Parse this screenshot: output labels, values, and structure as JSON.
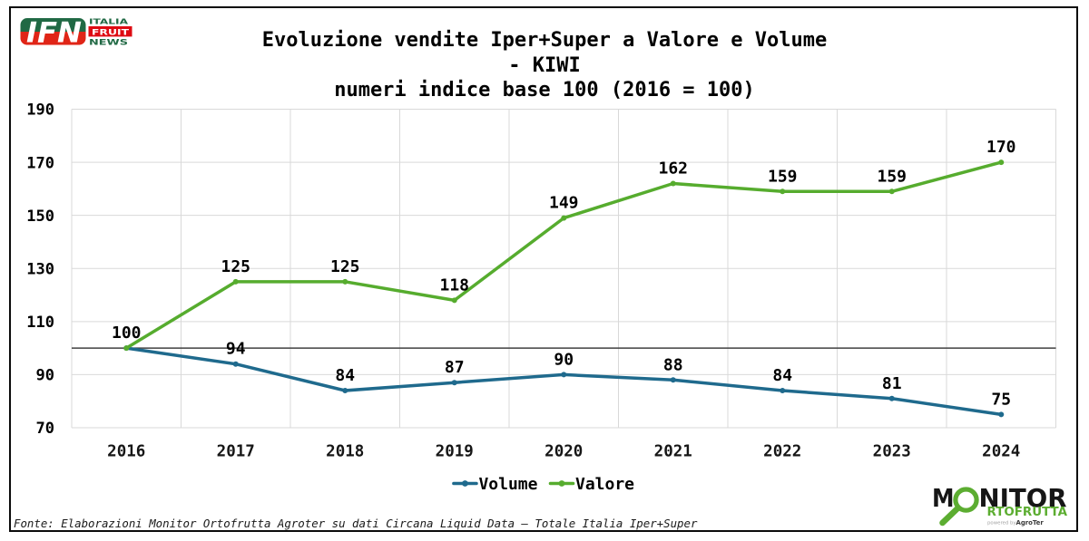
{
  "header": {
    "logo_ifn": {
      "initials": "IFN",
      "word1": "ITALIA",
      "word2": "FRUIT",
      "word3": "NEWS",
      "green": "#206944",
      "red": "#e02517",
      "fruit_block_red": "#de0b12",
      "white": "#ffffff"
    },
    "title_lines": [
      "Evoluzione vendite Iper+Super a Valore e Volume",
      "- KIWI",
      "numeri indice base 100 (2016 = 100)"
    ]
  },
  "chart_data": {
    "type": "line",
    "title": "Evoluzione vendite Iper+Super a Valore e Volume - KIWI numeri indice base 100 (2016 = 100)",
    "categories": [
      "2016",
      "2017",
      "2018",
      "2019",
      "2020",
      "2021",
      "2022",
      "2023",
      "2024"
    ],
    "series": [
      {
        "name": "Volume",
        "color": "#1f6a8d",
        "values": [
          100,
          94,
          84,
          87,
          90,
          88,
          84,
          81,
          75
        ]
      },
      {
        "name": "Valore",
        "color": "#56ac2e",
        "values": [
          100,
          125,
          125,
          118,
          149,
          162,
          159,
          159,
          170
        ]
      }
    ],
    "ylim": [
      70,
      190
    ],
    "ytick_step": 20,
    "reference_line": 100,
    "grid": true,
    "legend_position": "bottom",
    "grid_color": "#d9d9d9",
    "reference_color": "#404040",
    "tick_color": "#161616",
    "label_color": "#000000"
  },
  "footer": {
    "fonte": "Fonte: Elaborazioni Monitor Ortofrutta Agroter su dati Circana Liquid Data – Totale Italia Iper+Super",
    "logo_monitor": {
      "m": "M",
      "rest": "NITOR",
      "line2": "RTOFRUTTA",
      "powered": "powered by",
      "brand": "AgroTer",
      "black": "#161616",
      "green": "#5cad31"
    }
  }
}
